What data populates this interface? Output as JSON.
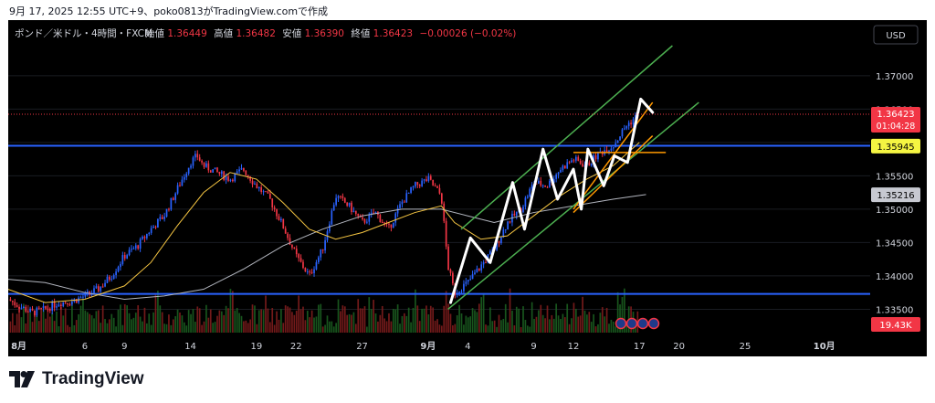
{
  "caption": "9月 17, 2025 12:55 UTC+9、poko0813がTradingView.comで作成",
  "brand": {
    "name": "TradingView",
    "logo_icon": "tradingview-logo-icon"
  },
  "colors": {
    "background": "#000000",
    "up": "#2962ff",
    "down": "#f23645",
    "level_line": "#2962ff",
    "channel": "#4caf50",
    "wedge": "#ff9800",
    "ma_fast": "#f5c542",
    "ma_slow": "#b2b5be",
    "projection": "#ffffff",
    "current_price_badge": "#f23645",
    "level_badge": "#f5f542"
  },
  "chart_data": {
    "type": "candlestick",
    "header": {
      "symbol": "ポンド／米ドル・4時間・FXCM",
      "open_label": "始値",
      "open": "1.36449",
      "high_label": "高値",
      "high": "1.36482",
      "low_label": "安値",
      "low": "1.36390",
      "close_label": "終値",
      "close": "1.36423",
      "change": "−0.00026 (−0.02%)"
    },
    "currency_button": "USD",
    "ylim": [
      1.3315,
      1.3745
    ],
    "y_ticks": [
      "1.37000",
      "1.36500",
      "1.36000",
      "1.35500",
      "1.35000",
      "1.34500",
      "1.34000",
      "1.33500"
    ],
    "x_ticks": [
      {
        "label": "8月",
        "day": 1
      },
      {
        "label": "6",
        "day": 6
      },
      {
        "label": "9",
        "day": 9
      },
      {
        "label": "14",
        "day": 14
      },
      {
        "label": "19",
        "day": 19
      },
      {
        "label": "22",
        "day": 22
      },
      {
        "label": "27",
        "day": 27
      },
      {
        "label": "9月",
        "day": 32
      },
      {
        "label": "4",
        "day": 35
      },
      {
        "label": "9",
        "day": 40
      },
      {
        "label": "12",
        "day": 43
      },
      {
        "label": "17",
        "day": 48
      },
      {
        "label": "20",
        "day": 51
      },
      {
        "label": "25",
        "day": 56
      },
      {
        "label": "10月",
        "day": 62
      }
    ],
    "xlim": [
      0.2,
      65.2
    ],
    "price_badges": [
      {
        "price": 1.36423,
        "label": "1.36423",
        "sub": "01:04:28",
        "kind": "current"
      },
      {
        "price": 1.35945,
        "label": "1.35945",
        "kind": "level"
      },
      {
        "price": 1.35216,
        "label": "1.35216",
        "kind": "ma"
      }
    ],
    "volume_badge": "19.43K",
    "horizontal_levels": [
      1.3595,
      1.3373
    ],
    "close_path": [
      [
        0.2,
        1.3365
      ],
      [
        1,
        1.3355
      ],
      [
        2,
        1.3345
      ],
      [
        3,
        1.335
      ],
      [
        4,
        1.336
      ],
      [
        5,
        1.3362
      ],
      [
        6,
        1.337
      ],
      [
        7,
        1.338
      ],
      [
        8,
        1.34
      ],
      [
        9,
        1.343
      ],
      [
        10,
        1.3445
      ],
      [
        11,
        1.347
      ],
      [
        12,
        1.349
      ],
      [
        13,
        1.353
      ],
      [
        14,
        1.357
      ],
      [
        14.5,
        1.358
      ],
      [
        15,
        1.3565
      ],
      [
        16,
        1.3555
      ],
      [
        17,
        1.3545
      ],
      [
        18,
        1.356
      ],
      [
        19,
        1.3535
      ],
      [
        20,
        1.3515
      ],
      [
        21,
        1.3475
      ],
      [
        22,
        1.343
      ],
      [
        23,
        1.34
      ],
      [
        24,
        1.344
      ],
      [
        25,
        1.352
      ],
      [
        26,
        1.3505
      ],
      [
        27,
        1.348
      ],
      [
        28,
        1.3495
      ],
      [
        29,
        1.347
      ],
      [
        30,
        1.351
      ],
      [
        31,
        1.3535
      ],
      [
        32,
        1.3545
      ],
      [
        33,
        1.352
      ],
      [
        33.5,
        1.3415
      ],
      [
        34,
        1.3375
      ],
      [
        35,
        1.339
      ],
      [
        36,
        1.3415
      ],
      [
        37,
        1.344
      ],
      [
        38,
        1.348
      ],
      [
        39,
        1.35
      ],
      [
        40,
        1.354
      ],
      [
        41,
        1.3535
      ],
      [
        42,
        1.356
      ],
      [
        43,
        1.3575
      ],
      [
        44,
        1.3565
      ],
      [
        45,
        1.3585
      ],
      [
        46,
        1.3595
      ],
      [
        47,
        1.3625
      ],
      [
        48,
        1.3643
      ]
    ],
    "ma_fast": [
      [
        0.2,
        1.338
      ],
      [
        3,
        1.336
      ],
      [
        6,
        1.3365
      ],
      [
        9,
        1.3385
      ],
      [
        11,
        1.342
      ],
      [
        13,
        1.3475
      ],
      [
        15,
        1.3525
      ],
      [
        17,
        1.3555
      ],
      [
        19,
        1.3545
      ],
      [
        21,
        1.351
      ],
      [
        23,
        1.347
      ],
      [
        25,
        1.3455
      ],
      [
        27,
        1.3465
      ],
      [
        29,
        1.348
      ],
      [
        31,
        1.3495
      ],
      [
        33,
        1.3505
      ],
      [
        34,
        1.348
      ],
      [
        36,
        1.3455
      ],
      [
        38,
        1.346
      ],
      [
        40,
        1.349
      ],
      [
        42,
        1.352
      ],
      [
        44,
        1.3545
      ],
      [
        46,
        1.3565
      ],
      [
        48,
        1.36
      ]
    ],
    "ma_slow": [
      [
        0.2,
        1.3395
      ],
      [
        3,
        1.339
      ],
      [
        6,
        1.3375
      ],
      [
        9,
        1.3365
      ],
      [
        12,
        1.337
      ],
      [
        15,
        1.338
      ],
      [
        18,
        1.341
      ],
      [
        21,
        1.3445
      ],
      [
        24,
        1.347
      ],
      [
        27,
        1.349
      ],
      [
        30,
        1.35
      ],
      [
        33,
        1.35
      ],
      [
        35,
        1.349
      ],
      [
        37,
        1.348
      ],
      [
        40,
        1.3495
      ],
      [
        43,
        1.3505
      ],
      [
        46,
        1.3515
      ],
      [
        48.5,
        1.3522
      ]
    ],
    "channel_lines": [
      [
        [
          34.5,
          1.347
        ],
        [
          50.5,
          1.3745
        ]
      ],
      [
        [
          33.5,
          1.335
        ],
        [
          52.5,
          1.366
        ]
      ]
    ],
    "wedge_lines": [
      [
        [
          43,
          1.35
        ],
        [
          49,
          1.366
        ]
      ],
      [
        [
          43,
          1.3495
        ],
        [
          49,
          1.361
        ]
      ]
    ],
    "resistance_segment": [
      [
        43,
        1.3585
      ],
      [
        50,
        1.3585
      ]
    ],
    "projection_zigzag": [
      [
        33.7,
        1.336
      ],
      [
        35.2,
        1.3457
      ],
      [
        36.7,
        1.342
      ],
      [
        38.4,
        1.354
      ],
      [
        39.3,
        1.347
      ],
      [
        40.7,
        1.359
      ],
      [
        41.8,
        1.3515
      ],
      [
        43,
        1.356
      ],
      [
        43.6,
        1.35
      ],
      [
        44.1,
        1.359
      ],
      [
        45.3,
        1.3535
      ],
      [
        46.1,
        1.358
      ],
      [
        47.1,
        1.357
      ],
      [
        48.1,
        1.3665
      ],
      [
        49,
        1.3645
      ]
    ],
    "event_icons": 4
  }
}
